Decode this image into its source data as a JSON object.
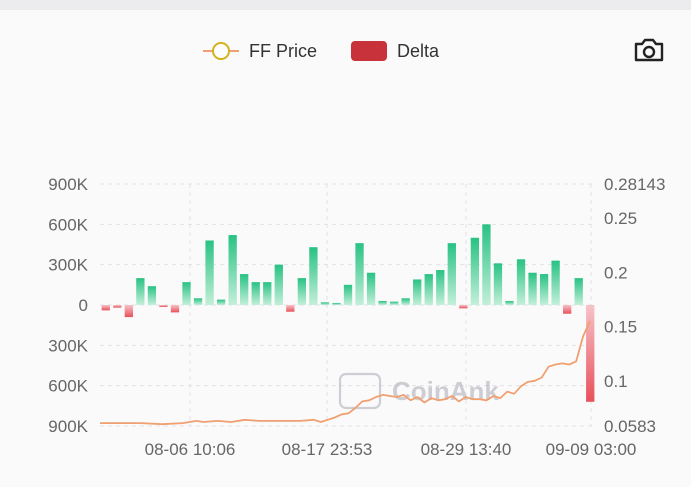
{
  "legend": {
    "price_label": "FF Price",
    "delta_label": "Delta"
  },
  "watermark": "CoinAnk",
  "colors": {
    "price_line": "#f0a070",
    "price_marker": "#d4b21c",
    "delta_negative": "#c8323a",
    "bar_positive": "#28c283",
    "bar_negative": "#e8505b",
    "axis_text": "#666666",
    "grid": "#e2e2e6"
  },
  "icons": {
    "toolbar": "camera-icon"
  },
  "chart_data": {
    "type": "bar",
    "x_ticks": [
      "08-06 10:06",
      "08-17 23:53",
      "08-29 13:40",
      "09-09 03:00"
    ],
    "left_axis": {
      "ticks": [
        "900K",
        "600K",
        "300K",
        "0",
        "300K",
        "600K",
        "900K"
      ],
      "values": [
        900000,
        600000,
        300000,
        0,
        -300000,
        -600000,
        -900000
      ],
      "ylim": [
        -900000,
        900000
      ]
    },
    "right_axis": {
      "ticks": [
        "0.28143",
        "0.25",
        "0.2",
        "0.15",
        "0.1",
        "0.0583"
      ],
      "values": [
        0.28143,
        0.25,
        0.2,
        0.15,
        0.1,
        0.0583
      ],
      "ylim": [
        0.0583,
        0.28143
      ]
    },
    "series": [
      {
        "name": "Delta",
        "kind": "bar",
        "values": [
          -40000,
          -20000,
          -90000,
          200000,
          140000,
          -15000,
          -55000,
          170000,
          50000,
          480000,
          40000,
          520000,
          230000,
          170000,
          170000,
          300000,
          -50000,
          200000,
          430000,
          20000,
          15000,
          150000,
          460000,
          240000,
          30000,
          25000,
          50000,
          190000,
          230000,
          260000,
          460000,
          -25000,
          500000,
          600000,
          310000,
          30000,
          340000,
          240000,
          230000,
          330000,
          -65000,
          200000,
          -720000
        ]
      },
      {
        "name": "FF Price",
        "kind": "line",
        "x": [
          0,
          3,
          6,
          9,
          12,
          14,
          15,
          17,
          19,
          21,
          23,
          25,
          27,
          29,
          31,
          32,
          33,
          34,
          35,
          36,
          37,
          38,
          39,
          40,
          41,
          42,
          43,
          44,
          45,
          46,
          47,
          48,
          49,
          50,
          51,
          52,
          53,
          54,
          55,
          56,
          57,
          58,
          59,
          60,
          61,
          62,
          63,
          64,
          65,
          66,
          67,
          68,
          69,
          70,
          71
        ],
        "values": [
          0.061,
          0.061,
          0.061,
          0.06,
          0.061,
          0.063,
          0.062,
          0.063,
          0.062,
          0.064,
          0.063,
          0.063,
          0.063,
          0.063,
          0.064,
          0.062,
          0.064,
          0.066,
          0.069,
          0.07,
          0.075,
          0.081,
          0.082,
          0.085,
          0.087,
          0.086,
          0.085,
          0.087,
          0.082,
          0.085,
          0.08,
          0.084,
          0.082,
          0.083,
          0.086,
          0.081,
          0.085,
          0.083,
          0.083,
          0.082,
          0.086,
          0.084,
          0.09,
          0.088,
          0.095,
          0.099,
          0.1,
          0.103,
          0.113,
          0.115,
          0.116,
          0.115,
          0.118,
          0.141,
          0.155
        ]
      }
    ]
  }
}
